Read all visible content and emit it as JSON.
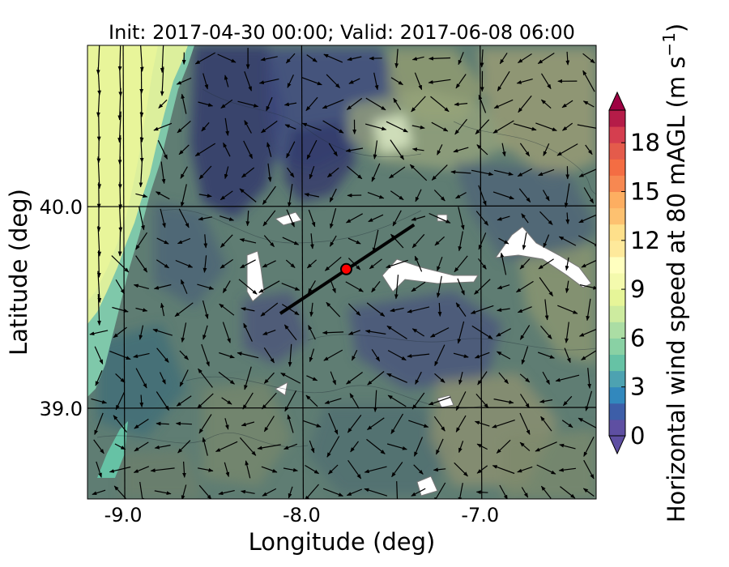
{
  "chart_data": {
    "type": "heatmap",
    "title": "Init: 2017-04-30 00:00; Valid: 2017-06-08 06:00",
    "xlabel": "Longitude (deg)",
    "ylabel": "Latitude (deg)",
    "xlim": [
      -9.2,
      -6.35
    ],
    "ylim": [
      38.55,
      40.8
    ],
    "xticks": [
      -9.0,
      -8.0,
      -7.0
    ],
    "yticks": [
      39.0,
      40.0
    ],
    "xtick_labels": [
      "-9.0",
      "-8.0",
      "-7.0"
    ],
    "ytick_labels": [
      "39.0",
      "40.0"
    ],
    "grid": true,
    "colorbar": {
      "label": "Horizontal wind speed at 80 mAGL (m s$^{-1}$)",
      "label_text": "Horizontal wind speed at 80 mAGL (m s",
      "label_sup": "−1",
      "label_close": ")",
      "min": 0,
      "max": 20,
      "ticks": [
        0,
        3,
        6,
        9,
        12,
        15,
        18
      ],
      "tick_labels": [
        "0",
        "3",
        "6",
        "9",
        "12",
        "15",
        "18"
      ],
      "extend": "both",
      "colormap": [
        "#5e4fa2",
        "#3d5ea8",
        "#3288bd",
        "#4da2b1",
        "#66c2a5",
        "#89d1a4",
        "#abdda4",
        "#cdeb9f",
        "#e6f598",
        "#f4faad",
        "#ffffbf",
        "#fee99b",
        "#fee08b",
        "#fdc170",
        "#fdae61",
        "#f78851",
        "#f46d43",
        "#e45b4b",
        "#d53e4f",
        "#b51c48",
        "#9e0142"
      ]
    },
    "cross_section_line": {
      "start": [
        -8.12,
        39.47
      ],
      "end": [
        -7.37,
        39.91
      ]
    },
    "marker": {
      "lon": -7.75,
      "lat": 39.69,
      "color": "#ff0000"
    }
  }
}
